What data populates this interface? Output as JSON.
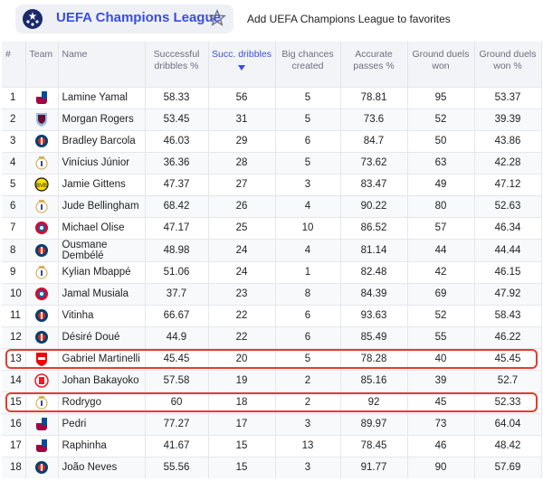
{
  "header": {
    "league_name": "UEFA Champions League",
    "favorite_label": "Add UEFA Champions League to favorites"
  },
  "table": {
    "columns": [
      "#",
      "Team",
      "Name",
      "Successful dribbles %",
      "Succ. dribbles",
      "Big chances created",
      "Accurate passes %",
      "Ground duels won",
      "Ground duels won %"
    ],
    "sorted_column": "Succ. dribbles",
    "rows": [
      {
        "rank": "1",
        "team": "barcelona",
        "name": "Lamine Yamal",
        "sdp": "58.33",
        "sd": "56",
        "bcc": "5",
        "ap": "78.81",
        "gdw": "95",
        "gdwp": "53.37"
      },
      {
        "rank": "2",
        "team": "aston-villa",
        "name": "Morgan Rogers",
        "sdp": "53.45",
        "sd": "31",
        "bcc": "5",
        "ap": "73.6",
        "gdw": "52",
        "gdwp": "39.39"
      },
      {
        "rank": "3",
        "team": "psg",
        "name": "Bradley Barcola",
        "sdp": "46.03",
        "sd": "29",
        "bcc": "6",
        "ap": "84.7",
        "gdw": "50",
        "gdwp": "43.86"
      },
      {
        "rank": "4",
        "team": "real-madrid",
        "name": "Vinícius Júnior",
        "sdp": "36.36",
        "sd": "28",
        "bcc": "5",
        "ap": "73.62",
        "gdw": "63",
        "gdwp": "42.28"
      },
      {
        "rank": "5",
        "team": "dortmund",
        "name": "Jamie Gittens",
        "sdp": "47.37",
        "sd": "27",
        "bcc": "3",
        "ap": "83.47",
        "gdw": "49",
        "gdwp": "47.12"
      },
      {
        "rank": "6",
        "team": "real-madrid",
        "name": "Jude Bellingham",
        "sdp": "68.42",
        "sd": "26",
        "bcc": "4",
        "ap": "90.22",
        "gdw": "80",
        "gdwp": "52.63"
      },
      {
        "rank": "7",
        "team": "bayern",
        "name": "Michael Olise",
        "sdp": "47.17",
        "sd": "25",
        "bcc": "10",
        "ap": "86.52",
        "gdw": "57",
        "gdwp": "46.34"
      },
      {
        "rank": "8",
        "team": "psg",
        "name": "Ousmane Dembélé",
        "sdp": "48.98",
        "sd": "24",
        "bcc": "4",
        "ap": "81.14",
        "gdw": "44",
        "gdwp": "44.44"
      },
      {
        "rank": "9",
        "team": "real-madrid",
        "name": "Kylian Mbappé",
        "sdp": "51.06",
        "sd": "24",
        "bcc": "1",
        "ap": "82.48",
        "gdw": "42",
        "gdwp": "46.15"
      },
      {
        "rank": "10",
        "team": "bayern",
        "name": "Jamal Musiala",
        "sdp": "37.7",
        "sd": "23",
        "bcc": "8",
        "ap": "84.39",
        "gdw": "69",
        "gdwp": "47.92"
      },
      {
        "rank": "11",
        "team": "psg",
        "name": "Vitinha",
        "sdp": "66.67",
        "sd": "22",
        "bcc": "6",
        "ap": "93.63",
        "gdw": "52",
        "gdwp": "58.43"
      },
      {
        "rank": "12",
        "team": "psg",
        "name": "Désiré Doué",
        "sdp": "44.9",
        "sd": "22",
        "bcc": "6",
        "ap": "85.49",
        "gdw": "55",
        "gdwp": "46.22"
      },
      {
        "rank": "13",
        "team": "arsenal",
        "name": "Gabriel Martinelli",
        "sdp": "45.45",
        "sd": "20",
        "bcc": "5",
        "ap": "78.28",
        "gdw": "40",
        "gdwp": "45.45"
      },
      {
        "rank": "14",
        "team": "psv",
        "name": "Johan Bakayoko",
        "sdp": "57.58",
        "sd": "19",
        "bcc": "2",
        "ap": "85.16",
        "gdw": "39",
        "gdwp": "52.7"
      },
      {
        "rank": "15",
        "team": "real-madrid",
        "name": "Rodrygo",
        "sdp": "60",
        "sd": "18",
        "bcc": "2",
        "ap": "92",
        "gdw": "45",
        "gdwp": "52.33"
      },
      {
        "rank": "16",
        "team": "barcelona",
        "name": "Pedri",
        "sdp": "77.27",
        "sd": "17",
        "bcc": "3",
        "ap": "89.97",
        "gdw": "73",
        "gdwp": "64.04"
      },
      {
        "rank": "17",
        "team": "barcelona",
        "name": "Raphinha",
        "sdp": "41.67",
        "sd": "15",
        "bcc": "13",
        "ap": "78.45",
        "gdw": "46",
        "gdwp": "48.42"
      },
      {
        "rank": "18",
        "team": "psg",
        "name": "João Neves",
        "sdp": "55.56",
        "sd": "15",
        "bcc": "3",
        "ap": "91.77",
        "gdw": "90",
        "gdwp": "57.69"
      }
    ]
  },
  "colors": {
    "accent": "#3b4fd8",
    "highlight": "#e63b2e"
  }
}
